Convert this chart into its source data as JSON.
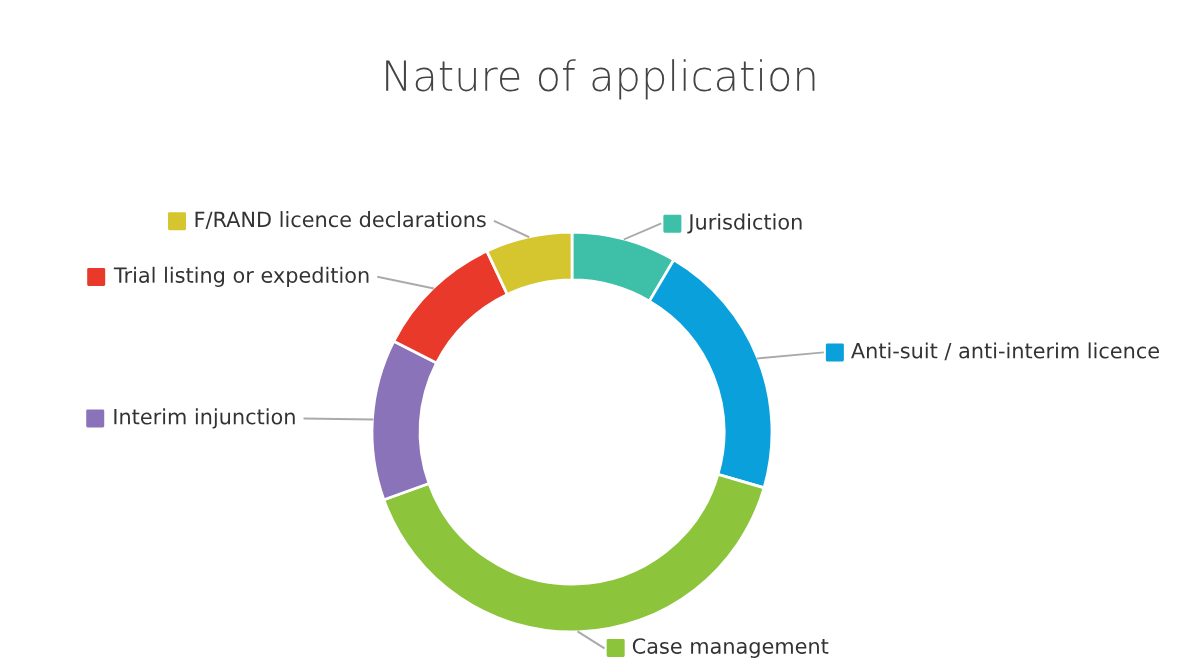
{
  "chart_data": {
    "type": "donut",
    "title": "Nature of application",
    "categories": [
      "Jurisdiction",
      "Anti-suit / anti-interim licence",
      "Case management",
      "Interim injunction",
      "Trial listing or expedition",
      "F/RAND licence declarations"
    ],
    "values": [
      8.5,
      21,
      40,
      13,
      10.5,
      7
    ],
    "colors": [
      "#3dbfa8",
      "#0aa0dc",
      "#8cc43c",
      "#8a73b8",
      "#e8392b",
      "#d5c52e"
    ],
    "legend": "right"
  }
}
